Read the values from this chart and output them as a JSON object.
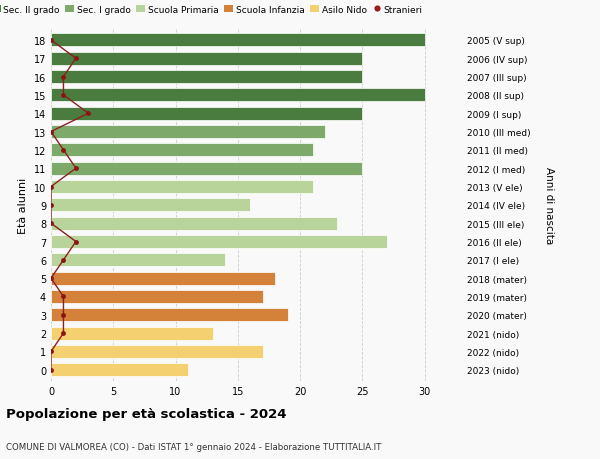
{
  "ages": [
    18,
    17,
    16,
    15,
    14,
    13,
    12,
    11,
    10,
    9,
    8,
    7,
    6,
    5,
    4,
    3,
    2,
    1,
    0
  ],
  "right_labels": [
    "2005 (V sup)",
    "2006 (IV sup)",
    "2007 (III sup)",
    "2008 (II sup)",
    "2009 (I sup)",
    "2010 (III med)",
    "2011 (II med)",
    "2012 (I med)",
    "2013 (V ele)",
    "2014 (IV ele)",
    "2015 (III ele)",
    "2016 (II ele)",
    "2017 (I ele)",
    "2018 (mater)",
    "2019 (mater)",
    "2020 (mater)",
    "2021 (nido)",
    "2022 (nido)",
    "2023 (nido)"
  ],
  "bar_values": [
    30,
    25,
    25,
    30,
    25,
    22,
    21,
    25,
    21,
    16,
    23,
    27,
    14,
    18,
    17,
    19,
    13,
    17,
    11
  ],
  "bar_colors": [
    "#4a7c3f",
    "#4a7c3f",
    "#4a7c3f",
    "#4a7c3f",
    "#4a7c3f",
    "#7daa6a",
    "#7daa6a",
    "#7daa6a",
    "#b8d49a",
    "#b8d49a",
    "#b8d49a",
    "#b8d49a",
    "#b8d49a",
    "#d4823a",
    "#d4823a",
    "#d4823a",
    "#f5d070",
    "#f5d070",
    "#f5d070"
  ],
  "stranieri_values": [
    0,
    2,
    1,
    1,
    3,
    0,
    1,
    2,
    0,
    0,
    0,
    2,
    1,
    0,
    1,
    1,
    1,
    0,
    0
  ],
  "title": "Popolazione per età scolastica - 2024",
  "subtitle": "COMUNE DI VALMOREA (CO) - Dati ISTAT 1° gennaio 2024 - Elaborazione TUTTITALIA.IT",
  "ylabel": "Età alunni",
  "right_ylabel": "Anni di nascita",
  "xlim": [
    0,
    33
  ],
  "xticks": [
    0,
    5,
    10,
    15,
    20,
    25,
    30
  ],
  "legend_labels": [
    "Sec. II grado",
    "Sec. I grado",
    "Scuola Primaria",
    "Scuola Infanzia",
    "Asilo Nido",
    "Stranieri"
  ],
  "legend_colors": [
    "#4a7c3f",
    "#7daa6a",
    "#b8d49a",
    "#d4823a",
    "#f5d070",
    "#9b1c1c"
  ],
  "bar_height": 0.72,
  "background_color": "#f9f9f9",
  "grid_color": "#cccccc",
  "line_color": "#8b2020"
}
